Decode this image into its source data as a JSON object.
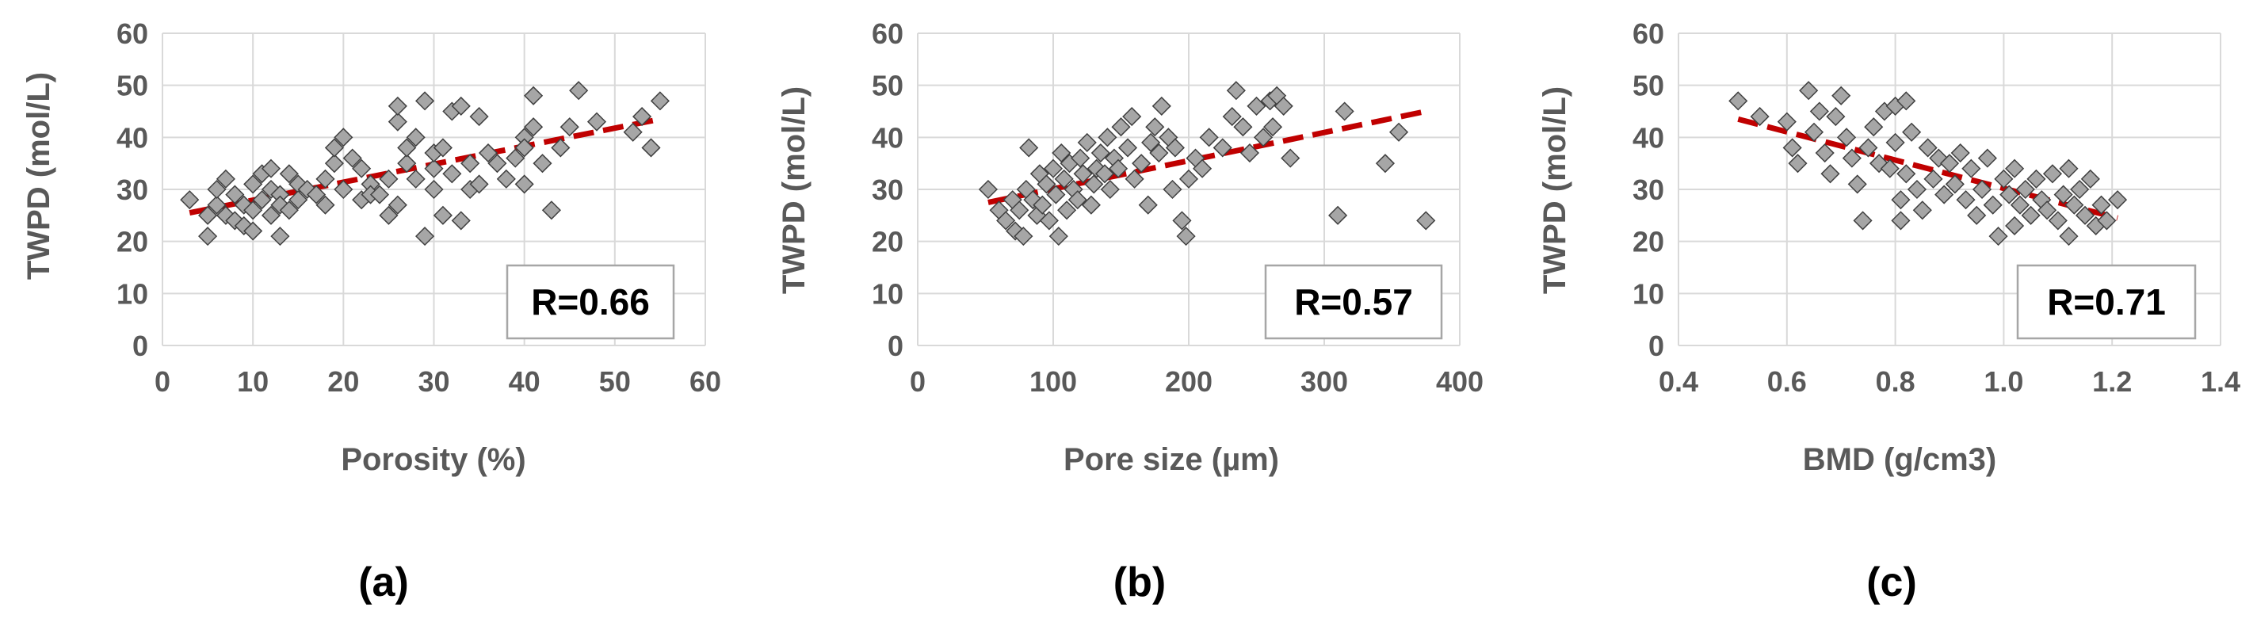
{
  "colors": {
    "marker": "#a6a6a6",
    "marker_edge": "#404040",
    "trend": "#c00000",
    "axis_text": "#595959",
    "grid": "#d9d9d9"
  },
  "chart_data": [
    {
      "type": "scatter",
      "panel_label": "(a)",
      "xlabel": "Porosity (%)",
      "ylabel": "TWPD (mol/L)",
      "xlim": [
        0,
        60
      ],
      "ylim": [
        0,
        60
      ],
      "xticks": [
        "0",
        "10",
        "20",
        "30",
        "40",
        "50",
        "60"
      ],
      "yticks": [
        "0",
        "10",
        "20",
        "30",
        "40",
        "50",
        "60"
      ],
      "r_label": "R=0.66",
      "trendline": {
        "x": [
          3,
          55
        ],
        "y": [
          25.5,
          43.5
        ]
      },
      "series": [
        {
          "name": "TWPD",
          "points": [
            [
              3,
              28
            ],
            [
              5,
              21
            ],
            [
              5,
              25
            ],
            [
              6,
              27
            ],
            [
              6,
              30
            ],
            [
              7,
              32
            ],
            [
              7,
              25
            ],
            [
              8,
              29
            ],
            [
              8,
              24
            ],
            [
              9,
              27
            ],
            [
              9,
              23
            ],
            [
              10,
              31
            ],
            [
              10,
              26
            ],
            [
              10,
              22
            ],
            [
              11,
              33
            ],
            [
              11,
              28
            ],
            [
              12,
              34
            ],
            [
              12,
              30
            ],
            [
              12,
              25
            ],
            [
              13,
              29
            ],
            [
              13,
              27
            ],
            [
              13,
              21
            ],
            [
              14,
              33
            ],
            [
              14,
              26
            ],
            [
              15,
              31
            ],
            [
              15,
              28
            ],
            [
              16,
              30
            ],
            [
              17,
              29
            ],
            [
              18,
              27
            ],
            [
              18,
              32
            ],
            [
              19,
              35
            ],
            [
              19,
              38
            ],
            [
              20,
              40
            ],
            [
              20,
              30
            ],
            [
              21,
              36
            ],
            [
              22,
              34
            ],
            [
              22,
              28
            ],
            [
              23,
              31
            ],
            [
              23,
              29
            ],
            [
              24,
              29
            ],
            [
              25,
              32
            ],
            [
              25,
              25
            ],
            [
              26,
              43
            ],
            [
              26,
              46
            ],
            [
              26,
              27
            ],
            [
              27,
              35
            ],
            [
              27,
              38
            ],
            [
              28,
              32
            ],
            [
              28,
              40
            ],
            [
              29,
              47
            ],
            [
              29,
              21
            ],
            [
              30,
              30
            ],
            [
              30,
              34
            ],
            [
              30,
              37
            ],
            [
              31,
              25
            ],
            [
              31,
              38
            ],
            [
              32,
              45
            ],
            [
              32,
              33
            ],
            [
              33,
              46
            ],
            [
              33,
              24
            ],
            [
              34,
              30
            ],
            [
              34,
              35
            ],
            [
              35,
              44
            ],
            [
              35,
              31
            ],
            [
              36,
              37
            ],
            [
              37,
              35
            ],
            [
              38,
              32
            ],
            [
              39,
              36
            ],
            [
              40,
              40
            ],
            [
              40,
              38
            ],
            [
              40,
              31
            ],
            [
              41,
              48
            ],
            [
              41,
              42
            ],
            [
              42,
              35
            ],
            [
              43,
              26
            ],
            [
              44,
              38
            ],
            [
              45,
              42
            ],
            [
              46,
              49
            ],
            [
              48,
              43
            ],
            [
              52,
              41
            ],
            [
              53,
              44
            ],
            [
              54,
              38
            ],
            [
              55,
              47
            ]
          ]
        }
      ]
    },
    {
      "type": "scatter",
      "panel_label": "(b)",
      "xlabel": "Pore size (µm)",
      "ylabel": "TWPD (mol/L)",
      "xlim": [
        0,
        400
      ],
      "ylim": [
        0,
        60
      ],
      "xticks": [
        "0",
        "100",
        "200",
        "300",
        "400"
      ],
      "yticks": [
        "0",
        "10",
        "20",
        "30",
        "40",
        "50",
        "60"
      ],
      "r_label": "R=0.57",
      "trendline": {
        "x": [
          52,
          375
        ],
        "y": [
          27.5,
          45
        ]
      },
      "series": [
        {
          "name": "TWPD",
          "points": [
            [
              52,
              30
            ],
            [
              60,
              26
            ],
            [
              65,
              24
            ],
            [
              70,
              28
            ],
            [
              72,
              22
            ],
            [
              75,
              26
            ],
            [
              78,
              21
            ],
            [
              80,
              30
            ],
            [
              82,
              38
            ],
            [
              85,
              28
            ],
            [
              88,
              25
            ],
            [
              90,
              33
            ],
            [
              92,
              27
            ],
            [
              95,
              31
            ],
            [
              97,
              24
            ],
            [
              100,
              34
            ],
            [
              102,
              29
            ],
            [
              104,
              21
            ],
            [
              106,
              37
            ],
            [
              108,
              32
            ],
            [
              110,
              26
            ],
            [
              112,
              35
            ],
            [
              115,
              30
            ],
            [
              118,
              28
            ],
            [
              120,
              36
            ],
            [
              122,
              33
            ],
            [
              125,
              39
            ],
            [
              128,
              27
            ],
            [
              130,
              31
            ],
            [
              132,
              34
            ],
            [
              135,
              37
            ],
            [
              138,
              33
            ],
            [
              140,
              40
            ],
            [
              142,
              30
            ],
            [
              145,
              36
            ],
            [
              148,
              34
            ],
            [
              150,
              42
            ],
            [
              155,
              38
            ],
            [
              158,
              44
            ],
            [
              160,
              32
            ],
            [
              165,
              35
            ],
            [
              170,
              27
            ],
            [
              172,
              39
            ],
            [
              175,
              42
            ],
            [
              178,
              37
            ],
            [
              180,
              46
            ],
            [
              185,
              40
            ],
            [
              188,
              30
            ],
            [
              190,
              38
            ],
            [
              195,
              24
            ],
            [
              198,
              21
            ],
            [
              200,
              32
            ],
            [
              205,
              36
            ],
            [
              210,
              34
            ],
            [
              215,
              40
            ],
            [
              225,
              38
            ],
            [
              232,
              44
            ],
            [
              235,
              49
            ],
            [
              240,
              42
            ],
            [
              245,
              37
            ],
            [
              250,
              46
            ],
            [
              255,
              40
            ],
            [
              260,
              47
            ],
            [
              262,
              42
            ],
            [
              265,
              48
            ],
            [
              270,
              46
            ],
            [
              275,
              36
            ],
            [
              310,
              25
            ],
            [
              315,
              45
            ],
            [
              345,
              35
            ],
            [
              355,
              41
            ],
            [
              375,
              24
            ]
          ]
        }
      ]
    },
    {
      "type": "scatter",
      "panel_label": "(c)",
      "xlabel": "BMD (g/cm3)",
      "ylabel": "TWPD (mol/L)",
      "xlim": [
        0.4,
        1.4
      ],
      "ylim": [
        0,
        60
      ],
      "xticks": [
        "0.4",
        "0.6",
        "0.8",
        "1.0",
        "1.2",
        "1.4"
      ],
      "yticks": [
        "0",
        "10",
        "20",
        "30",
        "40",
        "50",
        "60"
      ],
      "r_label": "R=0.71",
      "trendline": {
        "x": [
          0.51,
          1.21
        ],
        "y": [
          43.5,
          24.5
        ]
      },
      "series": [
        {
          "name": "TWPD",
          "points": [
            [
              0.51,
              47
            ],
            [
              0.55,
              44
            ],
            [
              0.6,
              43
            ],
            [
              0.61,
              38
            ],
            [
              0.62,
              35
            ],
            [
              0.64,
              49
            ],
            [
              0.65,
              41
            ],
            [
              0.66,
              45
            ],
            [
              0.67,
              37
            ],
            [
              0.68,
              33
            ],
            [
              0.69,
              44
            ],
            [
              0.7,
              48
            ],
            [
              0.71,
              40
            ],
            [
              0.72,
              36
            ],
            [
              0.73,
              31
            ],
            [
              0.74,
              24
            ],
            [
              0.75,
              38
            ],
            [
              0.76,
              42
            ],
            [
              0.77,
              35
            ],
            [
              0.78,
              45
            ],
            [
              0.79,
              34
            ],
            [
              0.8,
              46
            ],
            [
              0.8,
              39
            ],
            [
              0.81,
              28
            ],
            [
              0.81,
              24
            ],
            [
              0.82,
              47
            ],
            [
              0.82,
              33
            ],
            [
              0.83,
              41
            ],
            [
              0.84,
              30
            ],
            [
              0.85,
              26
            ],
            [
              0.86,
              38
            ],
            [
              0.87,
              32
            ],
            [
              0.88,
              36
            ],
            [
              0.89,
              29
            ],
            [
              0.9,
              35
            ],
            [
              0.91,
              31
            ],
            [
              0.92,
              37
            ],
            [
              0.93,
              28
            ],
            [
              0.94,
              34
            ],
            [
              0.95,
              25
            ],
            [
              0.96,
              30
            ],
            [
              0.97,
              36
            ],
            [
              0.98,
              27
            ],
            [
              0.99,
              21
            ],
            [
              1.0,
              32
            ],
            [
              1.01,
              29
            ],
            [
              1.02,
              34
            ],
            [
              1.02,
              23
            ],
            [
              1.03,
              27
            ],
            [
              1.04,
              30
            ],
            [
              1.05,
              25
            ],
            [
              1.06,
              32
            ],
            [
              1.07,
              28
            ],
            [
              1.08,
              26
            ],
            [
              1.09,
              33
            ],
            [
              1.1,
              24
            ],
            [
              1.11,
              29
            ],
            [
              1.12,
              34
            ],
            [
              1.12,
              21
            ],
            [
              1.13,
              27
            ],
            [
              1.14,
              30
            ],
            [
              1.15,
              25
            ],
            [
              1.16,
              32
            ],
            [
              1.17,
              23
            ],
            [
              1.18,
              27
            ],
            [
              1.19,
              24
            ],
            [
              1.21,
              28
            ]
          ]
        }
      ]
    }
  ]
}
